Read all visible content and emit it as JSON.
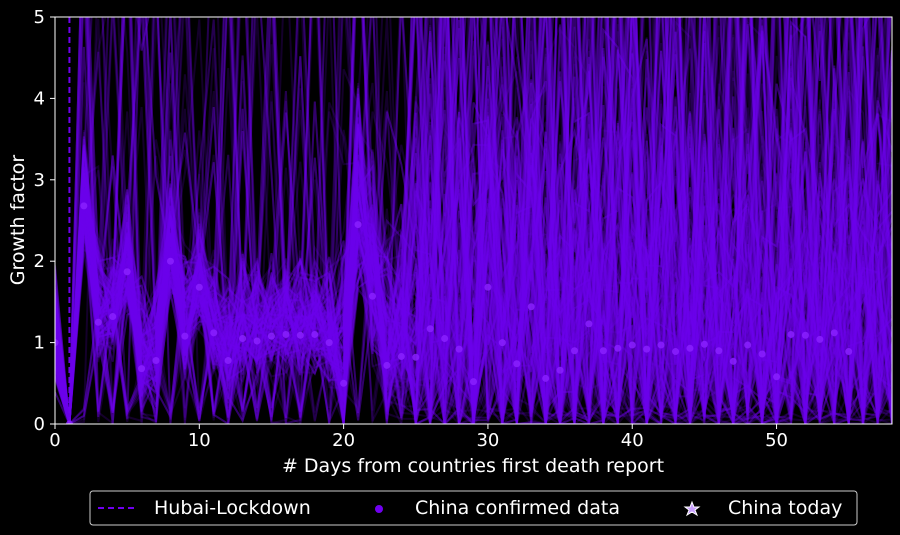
{
  "chart_data": {
    "type": "line",
    "xlabel": "# Days from countries first death report",
    "ylabel": "Growth factor",
    "xlim": [
      0,
      58
    ],
    "ylim": [
      0,
      5
    ],
    "x_ticks": [
      "0",
      "10",
      "20",
      "30",
      "40",
      "50"
    ],
    "y_ticks": [
      "0",
      "1",
      "2",
      "3",
      "4",
      "5"
    ],
    "grid": false,
    "lockdown_day": 1,
    "series_color": "#7000f0",
    "background": "#000000",
    "legend_position": "bottom-center",
    "legend": [
      {
        "label": "Hubai-Lockdown",
        "marker": "dashed-line"
      },
      {
        "label": "China confirmed data",
        "marker": "dot"
      },
      {
        "label": "China today",
        "marker": "star"
      }
    ],
    "confirmed": {
      "x": [
        0,
        1,
        2,
        3,
        4,
        5,
        6,
        7,
        8,
        9,
        10,
        11,
        12,
        13,
        14,
        15,
        16,
        17,
        18,
        19,
        20,
        21,
        22,
        23,
        24,
        25,
        26,
        27,
        28,
        29,
        30,
        31,
        32,
        33,
        34,
        35,
        36,
        37,
        38,
        39,
        40,
        41,
        42,
        43,
        44,
        45,
        46,
        47,
        48,
        49,
        50,
        51,
        52,
        53,
        54,
        55
      ],
      "y": [
        1.0,
        0.0,
        2.68,
        1.25,
        1.32,
        1.87,
        0.68,
        0.78,
        2.0,
        1.08,
        1.68,
        1.12,
        0.78,
        1.05,
        1.02,
        1.08,
        1.1,
        1.09,
        1.1,
        1.0,
        0.5,
        2.45,
        1.57,
        0.72,
        0.83,
        0.82,
        1.17,
        1.05,
        0.92,
        0.52,
        1.68,
        1.0,
        0.74,
        1.44,
        0.56,
        0.66,
        0.9,
        1.23,
        0.9,
        0.93,
        0.97,
        0.92,
        0.97,
        0.89,
        0.93,
        0.98,
        0.9,
        0.77,
        0.97,
        0.86,
        0.58,
        1.1,
        1.09,
        1.04,
        1.12,
        0.89
      ]
    },
    "today": {
      "x": 57,
      "y": 1.0
    }
  }
}
